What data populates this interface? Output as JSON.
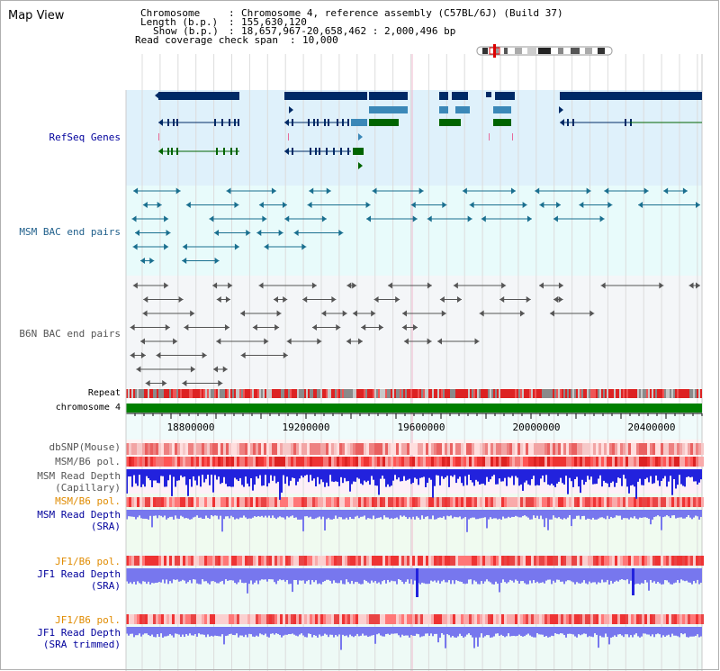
{
  "panel_title": "Map View",
  "info": {
    "chromosome_key": "Chromosome",
    "chromosome_val": "Chromosome 4, reference assembly (C57BL/6J) (Build 37)",
    "length_key": "Length (b.p.)",
    "length_val": "155,630,120",
    "show_key": "Show (b.p.)",
    "show_val": "18,657,967-20,658,462 : 2,000,496 bp",
    "coverage_key": "Read coverage check span",
    "coverage_val": "10,000"
  },
  "tracks": {
    "refseq": "RefSeq Genes",
    "msm_bac": "MSM BAC end pairs",
    "b6n_bac": "B6N BAC end pairs",
    "repeat": "Repeat",
    "chromosome": "chromosome 4",
    "dbsnp": "dbSNP(Mouse)",
    "msm_b6_pol_1": "MSM/B6 pol.",
    "msm_read_depth_cap_1": "MSM Read Depth",
    "msm_read_depth_cap_2": "(Capillary)",
    "msm_b6_pol_2": "MSM/B6 pol.",
    "msm_read_depth_sra_1": "MSM Read Depth",
    "msm_read_depth_sra_2": "(SRA)",
    "jf1_b6_pol_1": "JF1/B6 pol.",
    "jf1_read_depth_sra_1": "JF1 Read Depth",
    "jf1_read_depth_sra_2": "(SRA)",
    "jf1_b6_pol_2": "JF1/B6 pol.",
    "jf1_read_depth_trim_1": "JF1 Read Depth",
    "jf1_read_depth_trim_2": "(SRA trimmed)"
  },
  "axis_ticks": [
    "18800000",
    "19200000",
    "19600000",
    "20000000",
    "20400000"
  ],
  "colors": {
    "navy_label": "#00009c",
    "teal_label": "#1f5f8b",
    "gray_label": "#555555",
    "orange_label": "#e08b00",
    "gene_dark": "#002a66",
    "gene_teal": "#3b88b8",
    "gene_green": "#006400",
    "bac_teal": "#1a6f8f",
    "bac_gray": "#555555",
    "chromosome_bar": "#008000",
    "depth_blue": "#2222dd",
    "depth_light": "#7777ee",
    "snp_red": "#ee4444"
  }
}
